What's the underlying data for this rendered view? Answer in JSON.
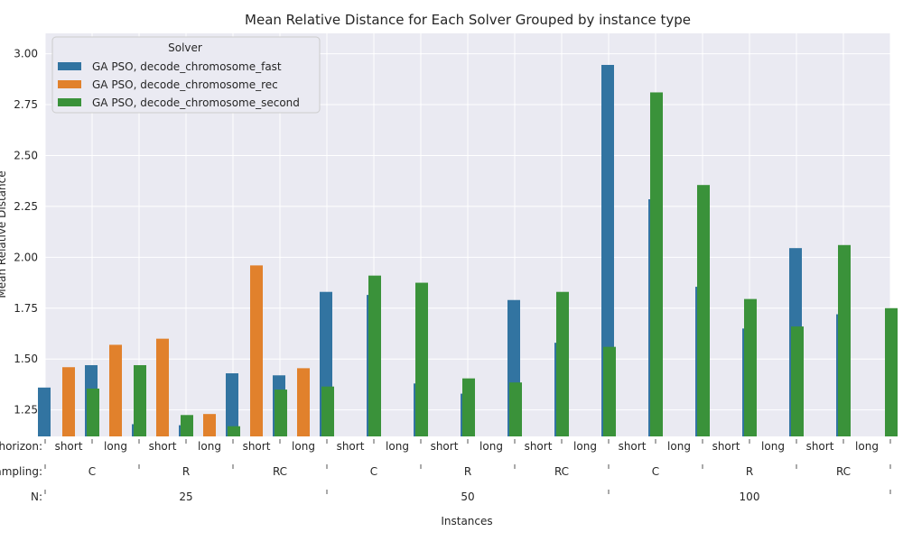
{
  "chart_data": {
    "type": "bar",
    "title": "Mean Relative Distance for Each Solver Grouped by instance type",
    "xlabel": "Instances",
    "ylabel": "Mean Relative Distance",
    "ylim": [
      1.12,
      3.1
    ],
    "yticks": [
      "1.25",
      "1.50",
      "1.75",
      "2.00",
      "2.25",
      "2.50",
      "2.75",
      "3.00"
    ],
    "grid": true,
    "legend": {
      "title": "Solver",
      "placement": "top-left"
    },
    "row_labels": {
      "horizon": "horizon:",
      "sampling": "sampling:",
      "n": "N:"
    },
    "horizon": [
      "short",
      "long",
      "short",
      "long",
      "short",
      "long",
      "short",
      "long",
      "short",
      "long",
      "short",
      "long",
      "short",
      "long",
      "short",
      "long",
      "short",
      "long"
    ],
    "sampling": [
      "C",
      "R",
      "RC",
      "C",
      "R",
      "RC",
      "C",
      "R",
      "RC"
    ],
    "n": [
      "25",
      "50",
      "100"
    ],
    "series": [
      {
        "name": "GA PSO, decode_chromosome_fast",
        "color": "#3274a1",
        "values": [
          1.36,
          1.47,
          1.18,
          1.175,
          1.43,
          1.42,
          1.83,
          1.815,
          1.38,
          1.33,
          1.79,
          1.58,
          2.945,
          2.285,
          1.855,
          1.65,
          2.045,
          1.72
        ]
      },
      {
        "name": "GA PSO, decode_chromosome_rec",
        "color": "#e1812c",
        "values": [
          1.46,
          1.57,
          1.6,
          1.23,
          1.96,
          1.455,
          null,
          null,
          null,
          null,
          null,
          null,
          null,
          null,
          null,
          null,
          null,
          null
        ]
      },
      {
        "name": "GA PSO, decode_chromosome_second",
        "color": "#3a923a",
        "values": [
          1.355,
          1.47,
          1.225,
          1.17,
          1.35,
          1.365,
          1.91,
          1.875,
          1.405,
          1.385,
          1.83,
          1.56,
          2.81,
          2.355,
          1.795,
          1.66,
          2.06,
          1.75
        ]
      }
    ]
  }
}
